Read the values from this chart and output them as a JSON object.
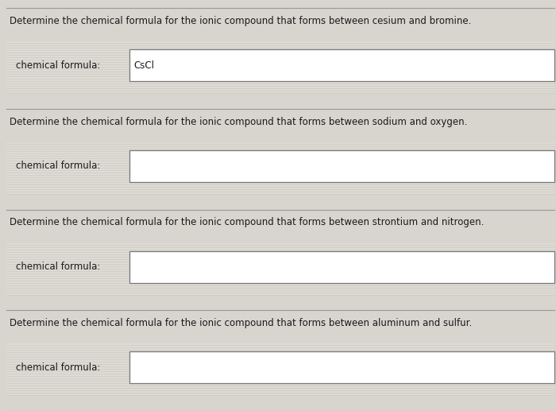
{
  "background_color": "#d8d4ce",
  "section_bg_color": "#e8e4de",
  "box_color": "#ffffff",
  "box_border_color": "#777777",
  "divider_color": "#999999",
  "text_color": "#1a1a1a",
  "questions": [
    {
      "question": "Determine the chemical formula for the ionic compound that forms between cesium and bromine.",
      "label": "chemical formula:",
      "answer": "CsCl",
      "has_answer": true
    },
    {
      "question": "Determine the chemical formula for the ionic compound that forms between sodium and oxygen.",
      "label": "chemical formula:",
      "answer": "",
      "has_answer": false
    },
    {
      "question": "Determine the chemical formula for the ionic compound that forms between strontium and nitrogen.",
      "label": "chemical formula:",
      "answer": "",
      "has_answer": false
    },
    {
      "question": "Determine the chemical formula for the ionic compound that forms between aluminum and sulfur.",
      "label": "chemical formula:",
      "answer": "",
      "has_answer": false
    }
  ],
  "question_fontsize": 8.5,
  "label_fontsize": 8.5,
  "answer_fontsize": 8.5,
  "fig_width": 7.0,
  "fig_height": 5.17,
  "dpi": 100
}
